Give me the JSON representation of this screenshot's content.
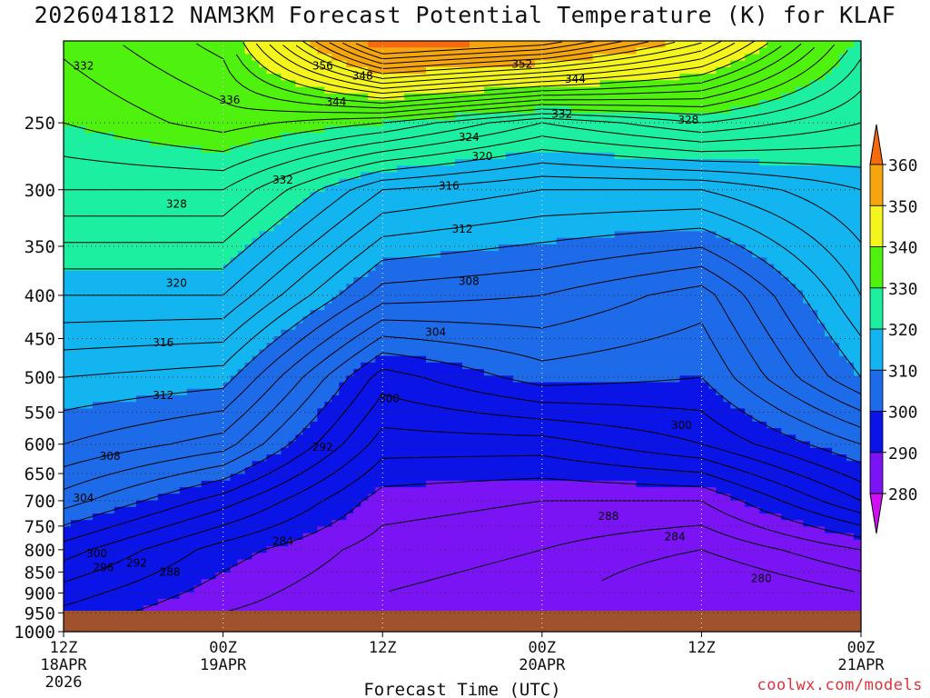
{
  "title": "2026041812 NAM3KM Forecast Potential Temperature (K) for KLAF",
  "credit": "coolwx.com/models",
  "chart_data": {
    "type": "heatmap",
    "subtype": "filled-contour time-height cross section",
    "title": "2026041812 NAM3KM Forecast Potential Temperature (K) for KLAF",
    "xlabel": "Forecast Time (UTC)",
    "ylabel": "",
    "x_range_hours": [
      0,
      60
    ],
    "y_range_hPa": [
      1000,
      200
    ],
    "y_scale": "log-pressure (inverted)",
    "grid": "dotted",
    "x_ticks": [
      {
        "hour": 0,
        "lines": [
          "12Z",
          "18APR",
          "2026"
        ]
      },
      {
        "hour": 12,
        "lines": [
          "00Z",
          "19APR"
        ]
      },
      {
        "hour": 24,
        "lines": [
          "12Z"
        ]
      },
      {
        "hour": 36,
        "lines": [
          "00Z",
          "20APR"
        ]
      },
      {
        "hour": 48,
        "lines": [
          "12Z"
        ]
      },
      {
        "hour": 60,
        "lines": [
          "00Z",
          "21APR"
        ]
      }
    ],
    "y_ticks": [
      250,
      300,
      350,
      400,
      450,
      500,
      550,
      600,
      650,
      700,
      750,
      800,
      850,
      900,
      950,
      1000
    ],
    "colorbar": {
      "levels": [
        280,
        290,
        300,
        310,
        320,
        330,
        340,
        350,
        360
      ],
      "colors": [
        "#d10ff5",
        "#7b14f5",
        "#0a14e6",
        "#1d6be8",
        "#12b5ef",
        "#1cf0a0",
        "#4ff20f",
        "#f5f51e",
        "#f5a60f",
        "#f56a0f"
      ],
      "extend": "both",
      "unit": "K"
    },
    "contour_interval": 2,
    "series": [
      {
        "hour": 0,
        "theta_by_level": [
          {
            "p": 1000,
            "t": 290
          },
          {
            "p": 900,
            "t": 293
          },
          {
            "p": 800,
            "t": 297
          },
          {
            "p": 700,
            "t": 303
          },
          {
            "p": 600,
            "t": 308
          },
          {
            "p": 500,
            "t": 312
          },
          {
            "p": 400,
            "t": 318
          },
          {
            "p": 300,
            "t": 326
          },
          {
            "p": 250,
            "t": 330
          },
          {
            "p": 210,
            "t": 332
          }
        ]
      },
      {
        "hour": 12,
        "theta_by_level": [
          {
            "p": 1000,
            "t": 287
          },
          {
            "p": 900,
            "t": 289
          },
          {
            "p": 800,
            "t": 291
          },
          {
            "p": 700,
            "t": 297
          },
          {
            "p": 600,
            "t": 305
          },
          {
            "p": 500,
            "t": 311
          },
          {
            "p": 400,
            "t": 318
          },
          {
            "p": 300,
            "t": 326
          },
          {
            "p": 250,
            "t": 333
          },
          {
            "p": 210,
            "t": 336
          }
        ]
      },
      {
        "hour": 24,
        "theta_by_level": [
          {
            "p": 1000,
            "t": 286
          },
          {
            "p": 900,
            "t": 286
          },
          {
            "p": 800,
            "t": 287
          },
          {
            "p": 700,
            "t": 289
          },
          {
            "p": 600,
            "t": 293
          },
          {
            "p": 500,
            "t": 297
          },
          {
            "p": 400,
            "t": 307
          },
          {
            "p": 300,
            "t": 316
          },
          {
            "p": 250,
            "t": 330
          },
          {
            "p": 210,
            "t": 356
          }
        ]
      },
      {
        "hour": 36,
        "theta_by_level": [
          {
            "p": 1000,
            "t": 285
          },
          {
            "p": 900,
            "t": 285
          },
          {
            "p": 800,
            "t": 286
          },
          {
            "p": 700,
            "t": 288
          },
          {
            "p": 600,
            "t": 293
          },
          {
            "p": 500,
            "t": 301
          },
          {
            "p": 400,
            "t": 306
          },
          {
            "p": 300,
            "t": 314
          },
          {
            "p": 250,
            "t": 324
          },
          {
            "p": 210,
            "t": 352
          }
        ]
      },
      {
        "hour": 48,
        "theta_by_level": [
          {
            "p": 1000,
            "t": 282
          },
          {
            "p": 900,
            "t": 281
          },
          {
            "p": 800,
            "t": 284
          },
          {
            "p": 700,
            "t": 288
          },
          {
            "p": 600,
            "t": 296
          },
          {
            "p": 500,
            "t": 300
          },
          {
            "p": 400,
            "t": 303
          },
          {
            "p": 300,
            "t": 314
          },
          {
            "p": 250,
            "t": 328
          },
          {
            "p": 210,
            "t": 344
          }
        ]
      },
      {
        "hour": 60,
        "theta_by_level": [
          {
            "p": 1000,
            "t": 284
          },
          {
            "p": 900,
            "t": 284
          },
          {
            "p": 800,
            "t": 288
          },
          {
            "p": 700,
            "t": 296
          },
          {
            "p": 600,
            "t": 302
          },
          {
            "p": 500,
            "t": 310
          },
          {
            "p": 400,
            "t": 314
          },
          {
            "p": 300,
            "t": 318
          },
          {
            "p": 250,
            "t": 324
          },
          {
            "p": 210,
            "t": 328
          }
        ]
      }
    ],
    "contour_labels": [
      {
        "value": "332",
        "hour": 1.5,
        "p": 214
      },
      {
        "value": "336",
        "hour": 12.5,
        "p": 235
      },
      {
        "value": "356",
        "hour": 19.5,
        "p": 214
      },
      {
        "value": "348",
        "hour": 22.5,
        "p": 220
      },
      {
        "value": "344",
        "hour": 20.5,
        "p": 236
      },
      {
        "value": "352",
        "hour": 34.5,
        "p": 213
      },
      {
        "value": "344",
        "hour": 38.5,
        "p": 222
      },
      {
        "value": "332",
        "hour": 37.5,
        "p": 244
      },
      {
        "value": "328",
        "hour": 47,
        "p": 248
      },
      {
        "value": "324",
        "hour": 30.5,
        "p": 260
      },
      {
        "value": "320",
        "hour": 31.5,
        "p": 274
      },
      {
        "value": "332",
        "hour": 16.5,
        "p": 292
      },
      {
        "value": "328",
        "hour": 8.5,
        "p": 312
      },
      {
        "value": "316",
        "hour": 29,
        "p": 297
      },
      {
        "value": "312",
        "hour": 30,
        "p": 334
      },
      {
        "value": "320",
        "hour": 8.5,
        "p": 387
      },
      {
        "value": "308",
        "hour": 30.5,
        "p": 385
      },
      {
        "value": "304",
        "hour": 28,
        "p": 442
      },
      {
        "value": "316",
        "hour": 7.5,
        "p": 455
      },
      {
        "value": "312",
        "hour": 7.5,
        "p": 525
      },
      {
        "value": "300",
        "hour": 24.5,
        "p": 530
      },
      {
        "value": "300",
        "hour": 46.5,
        "p": 570
      },
      {
        "value": "292",
        "hour": 19.5,
        "p": 605
      },
      {
        "value": "308",
        "hour": 3.5,
        "p": 620
      },
      {
        "value": "304",
        "hour": 1.5,
        "p": 695
      },
      {
        "value": "288",
        "hour": 41,
        "p": 730
      },
      {
        "value": "284",
        "hour": 16.5,
        "p": 782
      },
      {
        "value": "284",
        "hour": 46,
        "p": 772
      },
      {
        "value": "300",
        "hour": 2.5,
        "p": 808
      },
      {
        "value": "296",
        "hour": 3,
        "p": 840
      },
      {
        "value": "292",
        "hour": 5.5,
        "p": 830
      },
      {
        "value": "288",
        "hour": 8,
        "p": 850
      },
      {
        "value": "280",
        "hour": 52.5,
        "p": 865
      }
    ]
  }
}
